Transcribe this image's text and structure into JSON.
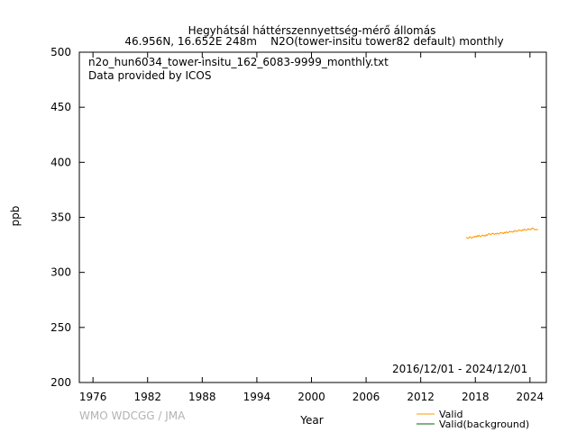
{
  "header": {
    "title_line1": "Hegyhátsál háttérszennyettség-mérő állomás",
    "title_line2": "46.956N, 16.652E 248m    N2O(tower-insitu tower82 default) monthly"
  },
  "annotations": {
    "filename": "n2o_hun6034_tower-insitu_162_6083-9999_monthly.txt",
    "provider": "Data provided by ICOS",
    "date_range": "2016/12/01 - 2024/12/01",
    "credit": "WMO WDCGG / JMA"
  },
  "chart_data": {
    "type": "line",
    "xlabel": "Year",
    "ylabel": "ppb",
    "xlim": [
      1974.5,
      2025.8
    ],
    "ylim": [
      200,
      500
    ],
    "x_ticks": [
      1976,
      1982,
      1988,
      1994,
      2000,
      2006,
      2012,
      2018,
      2024
    ],
    "y_ticks": [
      200,
      250,
      300,
      350,
      400,
      450,
      500
    ],
    "grid": false,
    "legend_position": "bottom-right",
    "series": [
      {
        "name": "Valid",
        "color": "#ff9900",
        "x": [
          2017.0,
          2017.1,
          2017.2,
          2017.3,
          2017.4,
          2017.5,
          2017.6,
          2017.7,
          2017.8,
          2017.9,
          2018.0,
          2018.1,
          2018.2,
          2018.3,
          2018.4,
          2018.5,
          2018.6,
          2018.7,
          2018.8,
          2018.9,
          2019.0,
          2019.1,
          2019.2,
          2019.3,
          2019.4,
          2019.5,
          2019.6,
          2019.7,
          2019.8,
          2019.9,
          2020.0,
          2020.1,
          2020.2,
          2020.3,
          2020.4,
          2020.5,
          2020.6,
          2020.7,
          2020.8,
          2020.9,
          2021.0,
          2021.1,
          2021.2,
          2021.3,
          2021.4,
          2021.5,
          2021.6,
          2021.7,
          2021.8,
          2021.9,
          2022.0,
          2022.1,
          2022.2,
          2022.3,
          2022.4,
          2022.5,
          2022.6,
          2022.7,
          2022.8,
          2022.9,
          2023.0,
          2023.1,
          2023.2,
          2023.3,
          2023.4,
          2023.5,
          2023.6,
          2023.7,
          2023.8,
          2023.9,
          2024.0,
          2024.1,
          2024.2,
          2024.3,
          2024.4,
          2024.5,
          2024.6,
          2024.7,
          2024.8,
          2024.9
        ],
        "values": [
          332.0,
          331.2,
          330.8,
          331.5,
          332.4,
          331.6,
          331.0,
          331.8,
          332.6,
          331.9,
          332.8,
          332.2,
          333.4,
          332.6,
          333.8,
          332.9,
          332.4,
          333.3,
          334.0,
          333.1,
          333.6,
          332.9,
          334.2,
          333.5,
          334.6,
          335.4,
          334.8,
          334.2,
          335.1,
          335.6,
          335.0,
          334.6,
          335.3,
          334.8,
          335.7,
          335.2,
          334.9,
          335.8,
          336.3,
          335.6,
          335.9,
          335.2,
          336.4,
          335.8,
          336.9,
          336.3,
          335.9,
          336.8,
          337.4,
          336.7,
          337.0,
          336.5,
          337.6,
          337.1,
          338.1,
          337.5,
          337.1,
          338.0,
          338.6,
          337.9,
          338.2,
          337.6,
          338.8,
          338.2,
          339.2,
          338.6,
          338.2,
          339.0,
          339.6,
          338.9,
          339.3,
          338.7,
          339.9,
          340.3,
          339.5,
          339.0,
          338.6,
          339.1,
          338.8,
          338.5
        ]
      },
      {
        "name": "Valid(background)",
        "color": "#006600",
        "x": [],
        "values": []
      }
    ]
  }
}
